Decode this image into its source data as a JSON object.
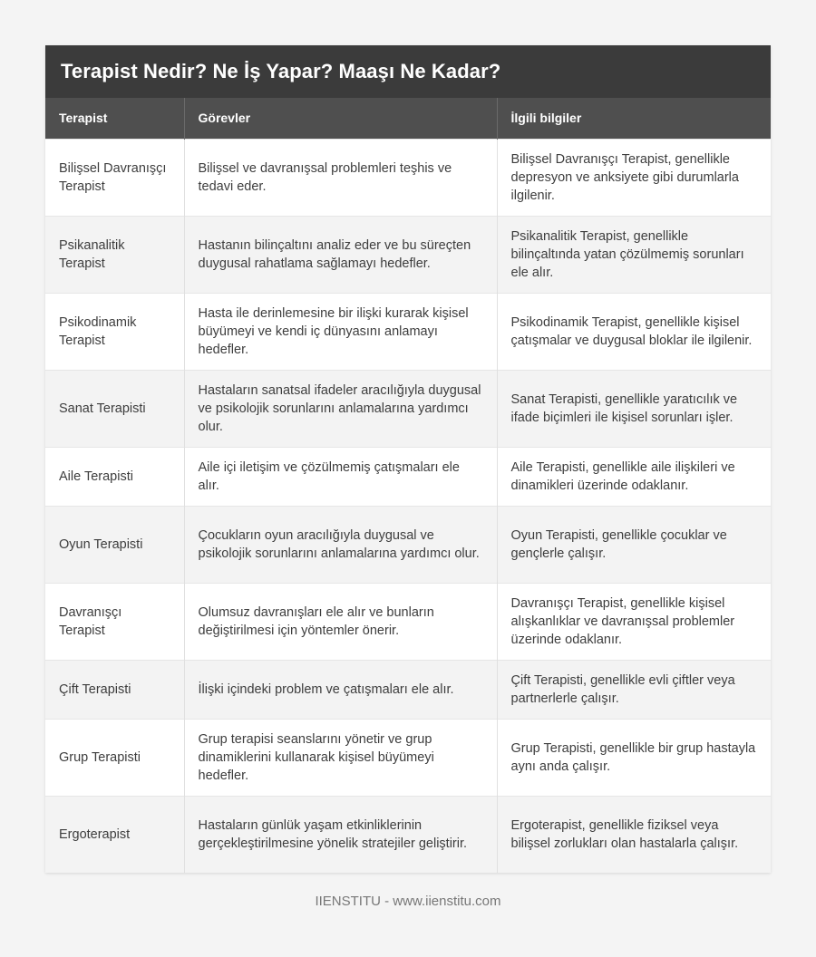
{
  "title": "Terapist Nedir? Ne İş Yapar? Maaşı Ne Kadar?",
  "headers": [
    "Terapist",
    "Görevler",
    "İlgili bilgiler"
  ],
  "rows": [
    {
      "name": "Bilişsel Davranışçı Terapist",
      "duties": "Bilişsel ve davranışsal problemleri teşhis ve tedavi eder.",
      "info": "Bilişsel Davranışçı Terapist, genellikle depresyon ve anksiyete gibi durumlarla ilgilenir."
    },
    {
      "name": "Psikanalitik Terapist",
      "duties": "Hastanın bilinçaltını analiz eder ve bu süreçten duygusal rahatlama sağlamayı hedefler.",
      "info": "Psikanalitik Terapist, genellikle bilinçaltında yatan çözülmemiş sorunları ele alır."
    },
    {
      "name": "Psikodinamik Terapist",
      "duties": "Hasta ile derinlemesine bir ilişki kurarak kişisel büyümeyi ve kendi iç dünyasını anlamayı hedefler.",
      "info": "Psikodinamik Terapist, genellikle kişisel çatışmalar ve duygusal bloklar ile ilgilenir."
    },
    {
      "name": "Sanat Terapisti",
      "duties": "Hastaların sanatsal ifadeler aracılığıyla duygusal ve psikolojik sorunlarını anlamalarına yardımcı olur.",
      "info": "Sanat Terapisti, genellikle yaratıcılık ve ifade biçimleri ile kişisel sorunları işler."
    },
    {
      "name": "Aile Terapisti",
      "duties": "Aile içi iletişim ve çözülmemiş çatışmaları ele alır.",
      "info": "Aile Terapisti, genellikle aile ilişkileri ve dinamikleri üzerinde odaklanır."
    },
    {
      "name": "Oyun Terapisti",
      "duties": "Çocukların oyun aracılığıyla duygusal ve psikolojik sorunlarını anlamalarına yardımcı olur.",
      "info": "Oyun Terapisti, genellikle çocuklar ve gençlerle çalışır."
    },
    {
      "name": "Davranışçı Terapist",
      "duties": "Olumsuz davranışları ele alır ve bunların değiştirilmesi için yöntemler önerir.",
      "info": "Davranışçı Terapist, genellikle kişisel alışkanlıklar ve davranışsal problemler üzerinde odaklanır."
    },
    {
      "name": "Çift Terapisti",
      "duties": "İlişki içindeki problem ve çatışmaları ele alır.",
      "info": "Çift Terapisti, genellikle evli çiftler veya partnerlerle çalışır."
    },
    {
      "name": "Grup Terapisti",
      "duties": "Grup terapisi seanslarını yönetir ve grup dinamiklerini kullanarak kişisel büyümeyi hedefler.",
      "info": "Grup Terapisti, genellikle bir grup hastayla aynı anda çalışır."
    },
    {
      "name": "Ergoterapist",
      "duties": "Hastaların günlük yaşam etkinliklerinin gerçekleştirilmesine yönelik stratejiler geliştirir.",
      "info": "Ergoterapist, genellikle fiziksel veya bilişsel zorlukları olan hastalarla çalışır."
    }
  ],
  "footer": "IIENSTITU - www.iienstitu.com"
}
